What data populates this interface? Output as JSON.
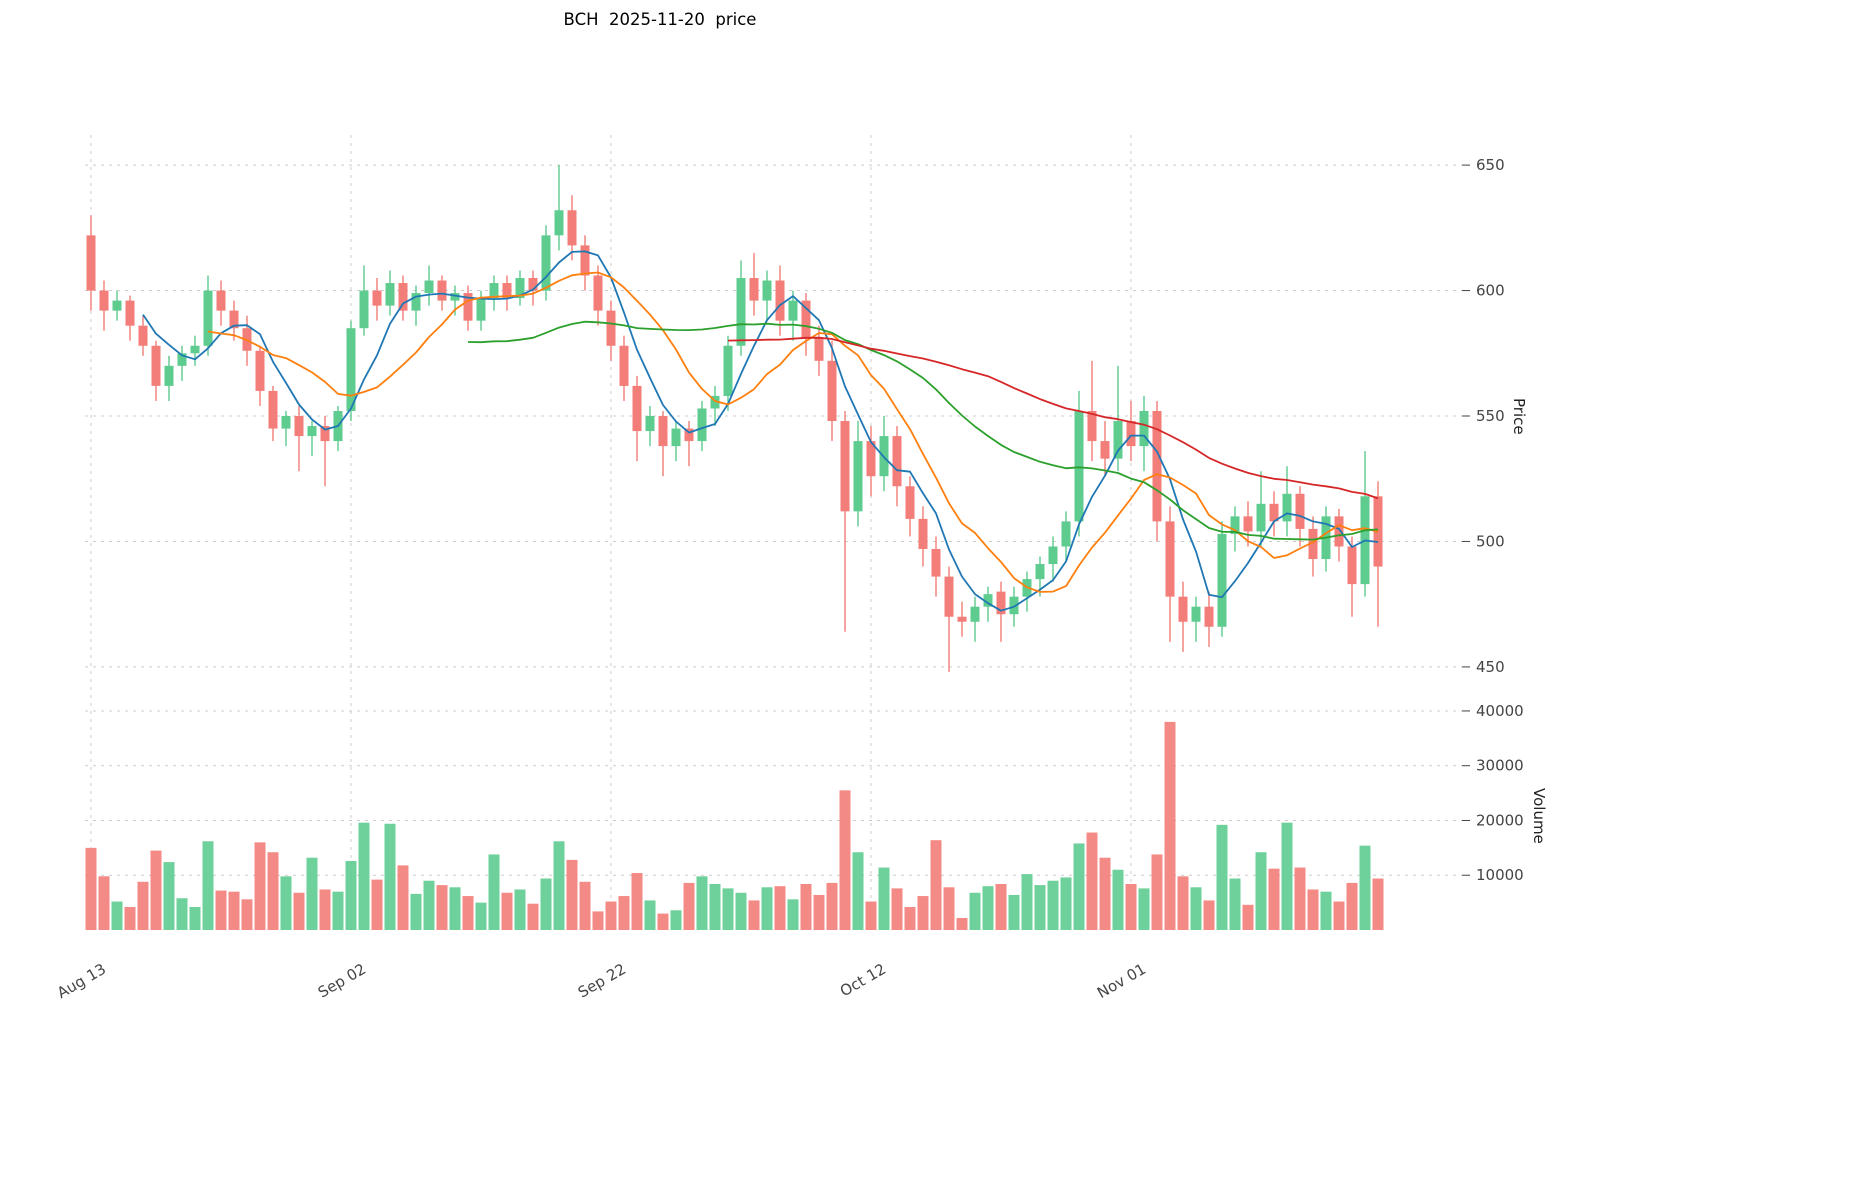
{
  "title": "BCH  2025-11-20  price",
  "axes": {
    "price_label": "Price",
    "volume_label": "Volume"
  },
  "chart_data": {
    "type": "candlestick+volume",
    "symbol": "BCH",
    "as_of_date": "2025-11-20",
    "start_date": "2025-08-13",
    "frequency": "daily",
    "x_tick_labels": [
      "Aug 13",
      "Sep 02",
      "Sep 22",
      "Oct 12",
      "Nov 01"
    ],
    "x_tick_days": [
      0,
      20,
      40,
      60,
      80
    ],
    "price_ticks": [
      450,
      500,
      550,
      600,
      650
    ],
    "volume_ticks": [
      10000,
      20000,
      30000,
      40000
    ],
    "price_range": [
      440,
      662
    ],
    "volume_max": 42000,
    "colors": {
      "up": "#5ecb8f",
      "down": "#f37d78",
      "grid": "#cccccc",
      "tick_text": "#444444"
    },
    "moving_averages": [
      {
        "name": "MA5",
        "window": 5,
        "color": "#1f77b4"
      },
      {
        "name": "MA10",
        "window": 10,
        "color": "#ff7f0e"
      },
      {
        "name": "MA30",
        "window": 30,
        "color": "#2ca02c"
      },
      {
        "name": "MA50",
        "window": 50,
        "color": "#d62728"
      }
    ],
    "ohlcv_columns": [
      "open",
      "high",
      "low",
      "close",
      "volume"
    ],
    "ohlcv": [
      [
        622,
        630,
        592,
        600,
        15000
      ],
      [
        600,
        604,
        584,
        592,
        9800
      ],
      [
        592,
        600,
        588,
        596,
        5200
      ],
      [
        596,
        598,
        580,
        586,
        4200
      ],
      [
        586,
        590,
        574,
        578,
        8800
      ],
      [
        578,
        580,
        556,
        562,
        14500
      ],
      [
        562,
        574,
        556,
        570,
        12400
      ],
      [
        570,
        578,
        564,
        575,
        5800
      ],
      [
        575,
        582,
        570,
        578,
        4200
      ],
      [
        578,
        606,
        574,
        600,
        16200
      ],
      [
        600,
        604,
        586,
        592,
        7200
      ],
      [
        592,
        596,
        580,
        585,
        7000
      ],
      [
        585,
        590,
        570,
        576,
        5600
      ],
      [
        576,
        578,
        554,
        560,
        16000
      ],
      [
        560,
        562,
        540,
        545,
        14200
      ],
      [
        545,
        552,
        538,
        550,
        9800
      ],
      [
        550,
        554,
        528,
        542,
        6800
      ],
      [
        542,
        548,
        534,
        546,
        13200
      ],
      [
        546,
        550,
        522,
        540,
        7400
      ],
      [
        540,
        554,
        536,
        552,
        7000
      ],
      [
        552,
        588,
        548,
        585,
        12600
      ],
      [
        585,
        610,
        582,
        600,
        19600
      ],
      [
        600,
        605,
        588,
        594,
        9200
      ],
      [
        594,
        608,
        590,
        603,
        19400
      ],
      [
        603,
        606,
        588,
        592,
        11800
      ],
      [
        592,
        602,
        586,
        599,
        6600
      ],
      [
        599,
        610,
        594,
        604,
        9000
      ],
      [
        604,
        606,
        592,
        596,
        8200
      ],
      [
        596,
        602,
        590,
        599,
        7800
      ],
      [
        599,
        602,
        584,
        588,
        6200
      ],
      [
        588,
        600,
        584,
        597,
        5000
      ],
      [
        597,
        606,
        592,
        603,
        13800
      ],
      [
        603,
        606,
        592,
        597,
        6800
      ],
      [
        597,
        608,
        594,
        605,
        7400
      ],
      [
        605,
        608,
        594,
        600,
        4800
      ],
      [
        600,
        626,
        596,
        622,
        9400
      ],
      [
        622,
        650,
        616,
        632,
        16200
      ],
      [
        632,
        638,
        612,
        618,
        12800
      ],
      [
        618,
        622,
        600,
        606,
        8800
      ],
      [
        606,
        610,
        586,
        592,
        3400
      ],
      [
        592,
        596,
        572,
        578,
        5200
      ],
      [
        578,
        582,
        556,
        562,
        6200
      ],
      [
        562,
        566,
        532,
        544,
        10400
      ],
      [
        544,
        554,
        538,
        550,
        5400
      ],
      [
        550,
        552,
        526,
        538,
        3000
      ],
      [
        538,
        548,
        532,
        545,
        3600
      ],
      [
        545,
        548,
        530,
        540,
        8600
      ],
      [
        540,
        556,
        536,
        553,
        9800
      ],
      [
        553,
        562,
        546,
        558,
        8400
      ],
      [
        558,
        582,
        552,
        578,
        7600
      ],
      [
        578,
        612,
        574,
        605,
        6800
      ],
      [
        605,
        615,
        590,
        596,
        5400
      ],
      [
        596,
        608,
        588,
        604,
        7800
      ],
      [
        604,
        610,
        582,
        588,
        8000
      ],
      [
        588,
        600,
        580,
        596,
        5600
      ],
      [
        596,
        599,
        574,
        581,
        8400
      ],
      [
        581,
        586,
        566,
        572,
        6400
      ],
      [
        572,
        580,
        540,
        548,
        8600
      ],
      [
        548,
        552,
        464,
        512,
        25500
      ],
      [
        512,
        548,
        506,
        540,
        14200
      ],
      [
        540,
        546,
        518,
        526,
        5200
      ],
      [
        526,
        550,
        520,
        542,
        11400
      ],
      [
        542,
        546,
        514,
        522,
        7600
      ],
      [
        522,
        526,
        502,
        509,
        4200
      ],
      [
        509,
        514,
        490,
        497,
        6200
      ],
      [
        497,
        502,
        478,
        486,
        16400
      ],
      [
        486,
        490,
        448,
        470,
        7800
      ],
      [
        470,
        476,
        462,
        468,
        2200
      ],
      [
        468,
        478,
        460,
        474,
        6800
      ],
      [
        474,
        482,
        468,
        479,
        8000
      ],
      [
        480,
        484,
        460,
        471,
        8400
      ],
      [
        471,
        482,
        466,
        478,
        6400
      ],
      [
        478,
        488,
        472,
        485,
        10200
      ],
      [
        485,
        494,
        478,
        491,
        8200
      ],
      [
        491,
        502,
        484,
        498,
        9000
      ],
      [
        498,
        512,
        492,
        508,
        9600
      ],
      [
        508,
        560,
        502,
        552,
        15800
      ],
      [
        552,
        572,
        532,
        540,
        17800
      ],
      [
        540,
        548,
        526,
        533,
        13200
      ],
      [
        533,
        570,
        528,
        548,
        11000
      ],
      [
        548,
        556,
        532,
        538,
        8400
      ],
      [
        538,
        558,
        528,
        552,
        7600
      ],
      [
        552,
        556,
        500,
        508,
        13800
      ],
      [
        508,
        514,
        460,
        478,
        38000
      ],
      [
        478,
        484,
        456,
        468,
        9800
      ],
      [
        468,
        478,
        460,
        474,
        7800
      ],
      [
        474,
        480,
        458,
        466,
        5400
      ],
      [
        466,
        508,
        462,
        503,
        19200
      ],
      [
        503,
        514,
        496,
        510,
        9400
      ],
      [
        510,
        516,
        498,
        504,
        4600
      ],
      [
        504,
        528,
        498,
        515,
        14200
      ],
      [
        515,
        520,
        502,
        508,
        11200
      ],
      [
        508,
        530,
        502,
        519,
        19600
      ],
      [
        519,
        522,
        498,
        505,
        11400
      ],
      [
        505,
        510,
        486,
        493,
        7400
      ],
      [
        493,
        514,
        488,
        510,
        7000
      ],
      [
        510,
        513,
        492,
        498,
        5200
      ],
      [
        498,
        502,
        470,
        483,
        8600
      ],
      [
        483,
        536,
        478,
        518,
        15400
      ],
      [
        518,
        524,
        466,
        490,
        9400
      ]
    ]
  }
}
